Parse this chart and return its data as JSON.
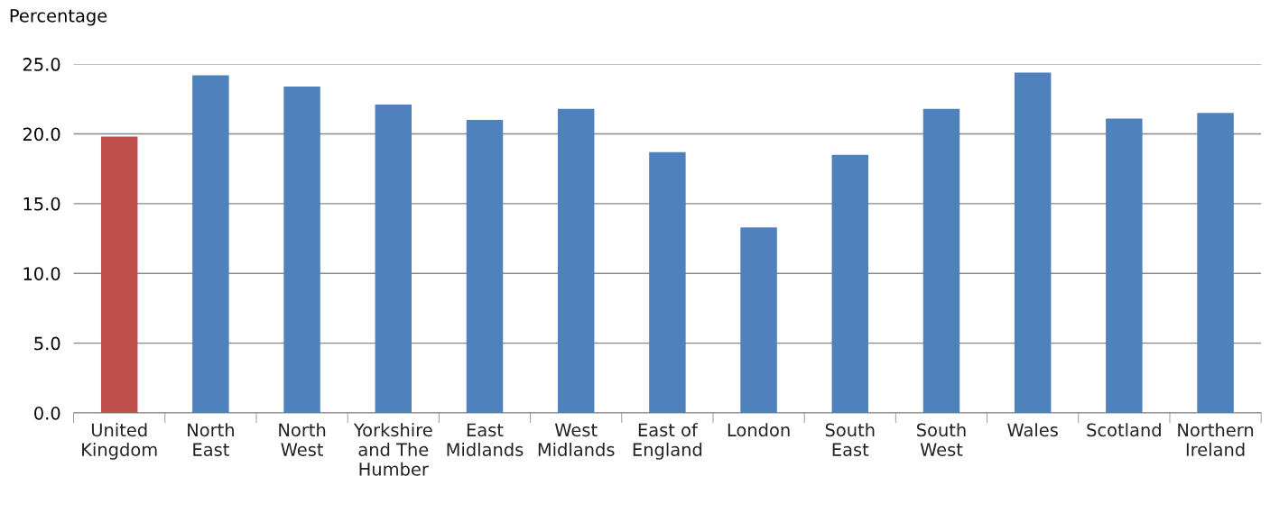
{
  "chart_data": {
    "type": "bar",
    "ylabel": "Percentage",
    "categories": [
      "United\nKingdom",
      "North\nEast",
      "North\nWest",
      "Yorkshire\nand The\nHumber",
      "East\nMidlands",
      "West\nMidlands",
      "East of\nEngland",
      "London",
      "South\nEast",
      "South\nWest",
      "Wales",
      "Scotland",
      "Northern\nIreland"
    ],
    "values": [
      19.8,
      24.2,
      23.4,
      22.1,
      21.0,
      21.8,
      18.7,
      13.3,
      18.5,
      21.8,
      24.4,
      21.1,
      21.5
    ],
    "colors": [
      "#c0504d",
      "#4f81bd",
      "#4f81bd",
      "#4f81bd",
      "#4f81bd",
      "#4f81bd",
      "#4f81bd",
      "#4f81bd",
      "#4f81bd",
      "#4f81bd",
      "#4f81bd",
      "#4f81bd",
      "#4f81bd"
    ],
    "ylim": [
      0,
      25
    ],
    "yticks": [
      {
        "value": 0,
        "label": "0.0"
      },
      {
        "value": 5,
        "label": "5.0"
      },
      {
        "value": 10,
        "label": "10.0"
      },
      {
        "value": 15,
        "label": "15.0"
      },
      {
        "value": 20,
        "label": "20.0"
      },
      {
        "value": 25,
        "label": "25.0"
      }
    ],
    "grid": "y",
    "legend": false
  }
}
